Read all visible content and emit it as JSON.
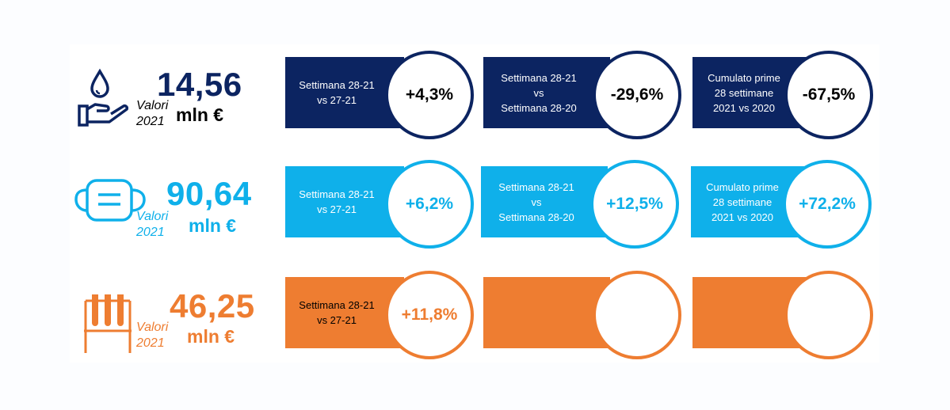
{
  "rows": [
    {
      "color": "#0c2461",
      "text_color": "#000000",
      "icon": "hand-water-drop-icon",
      "value": "14,56",
      "unit": "mln €",
      "label": "Valori\n2021",
      "cards": [
        {
          "text": "Settimana 28-21\nvs 27-21",
          "pct": "+4,3%"
        },
        {
          "text": "Settimana 28-21\nvs\nSettimana 28-20",
          "pct": "-29,6%"
        },
        {
          "text": "Cumulato prime\n28 settimane\n2021 vs 2020",
          "pct": "-67,5%"
        }
      ]
    },
    {
      "color": "#0fb0ea",
      "text_color": "#0fb0ea",
      "icon": "face-mask-icon",
      "value": "90,64",
      "unit": "mln €",
      "label": "Valori\n2021",
      "cards": [
        {
          "text": "Settimana 28-21\nvs 27-21",
          "pct": "+6,2%"
        },
        {
          "text": "Settimana 28-21\nvs\nSettimana 28-20",
          "pct": "+12,5%"
        },
        {
          "text": "Cumulato prime\n28 settimane\n2021 vs 2020",
          "pct": "+72,2%"
        }
      ]
    },
    {
      "color": "#ee7d31",
      "text_color": "#ee7d31",
      "icon": "test-tubes-icon",
      "value": "46,25",
      "unit": "mln €",
      "label": "Valori\n2021",
      "cards": [
        {
          "text": "Settimana 28-21\nvs 27-21",
          "pct": "+11,8%"
        },
        {
          "text": "",
          "pct": ""
        },
        {
          "text": "",
          "pct": ""
        }
      ]
    }
  ]
}
